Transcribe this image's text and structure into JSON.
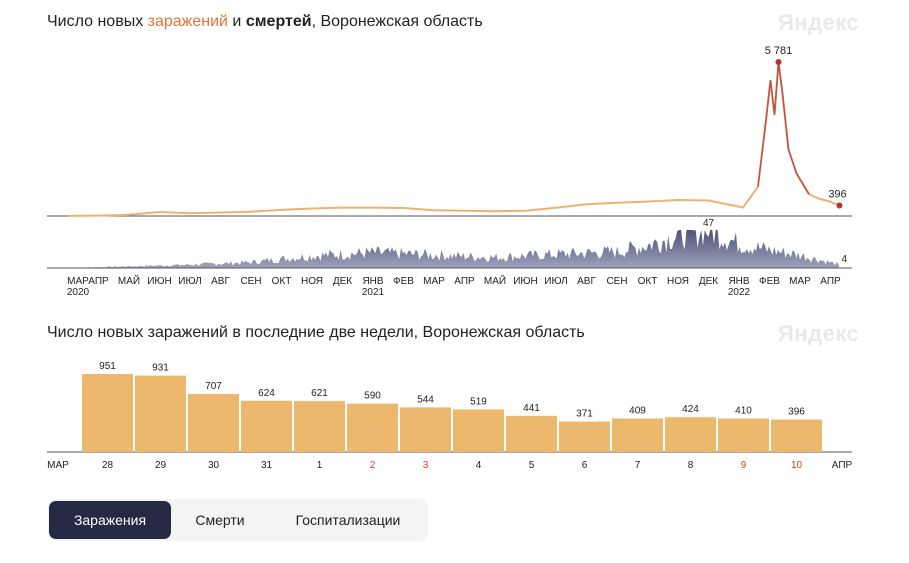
{
  "colors": {
    "infections_line": "#ebb36f",
    "infections_peak": "#b3323a",
    "deaths_area": "#4f5478",
    "bar": "#ecb86d",
    "weekend_label": "#d0401b",
    "active_tab": "#262a45",
    "brand": "#e9e9e9"
  },
  "brand": "Яндекс",
  "chart_top": {
    "title_part1": "Число новых ",
    "title_infections": "заражений",
    "title_part2": " и ",
    "title_deaths": "смертей",
    "title_part3": ", Воронежская область"
  },
  "chart_bottom": {
    "title": "Число новых заражений в последние две недели, Воронежская область"
  },
  "chart_data": [
    {
      "type": "line",
      "series": [
        {
          "name": "заражений",
          "x": [
            "2020-03",
            "2020-04",
            "2020-05",
            "2020-06",
            "2020-07",
            "2020-08",
            "2020-09",
            "2020-10",
            "2020-11",
            "2020-12",
            "2021-01",
            "2021-02",
            "2021-03",
            "2021-04",
            "2021-05",
            "2021-06",
            "2021-07",
            "2021-08",
            "2021-09",
            "2021-10",
            "2021-11",
            "2021-12",
            "2022-01-05",
            "2022-01-20",
            "2022-01-28",
            "2022-02-02",
            "2022-02-06",
            "2022-02-10",
            "2022-02-14",
            "2022-02-20",
            "2022-02-28",
            "2022-03-10",
            "2022-03-20",
            "2022-03-31",
            "2022-04-10"
          ],
          "values": [
            2,
            15,
            45,
            150,
            100,
            130,
            160,
            230,
            280,
            315,
            315,
            300,
            215,
            195,
            180,
            200,
            310,
            440,
            500,
            540,
            600,
            580,
            320,
            1100,
            3600,
            5100,
            3800,
            5781,
            4600,
            2500,
            1600,
            820,
            650,
            540,
            396
          ]
        },
        {
          "name": "смертей",
          "x": [
            "2020-03",
            "2020-05",
            "2020-07",
            "2020-09",
            "2020-11",
            "2021-01",
            "2021-03",
            "2021-05",
            "2021-07",
            "2021-09",
            "2021-10",
            "2021-11",
            "2021-12",
            "2022-01",
            "2022-02",
            "2022-03",
            "2022-04-10"
          ],
          "values": [
            0,
            2,
            4,
            7,
            15,
            19,
            16,
            13,
            17,
            20,
            28,
            40,
            47,
            30,
            22,
            16,
            4
          ]
        }
      ],
      "annotations": [
        {
          "label": "5 781",
          "series": "заражений",
          "x": "2022-02-10"
        },
        {
          "label": "396",
          "series": "заражений",
          "x": "2022-04-10"
        },
        {
          "label": "47",
          "series": "смертей",
          "x": "2021-12"
        },
        {
          "label": "4",
          "series": "смертей",
          "x": "2022-04-10"
        }
      ],
      "x_ticks": [
        {
          "label": "МАР",
          "year": "2020"
        },
        {
          "label": "АПР"
        },
        {
          "label": "МАЙ"
        },
        {
          "label": "ИЮН"
        },
        {
          "label": "ИЮЛ"
        },
        {
          "label": "АВГ"
        },
        {
          "label": "СЕН"
        },
        {
          "label": "ОКТ"
        },
        {
          "label": "НОЯ"
        },
        {
          "label": "ДЕК"
        },
        {
          "label": "ЯНВ",
          "year": "2021"
        },
        {
          "label": "ФЕВ"
        },
        {
          "label": "МАР"
        },
        {
          "label": "АПР"
        },
        {
          "label": "МАЙ"
        },
        {
          "label": "ИЮН"
        },
        {
          "label": "ИЮЛ"
        },
        {
          "label": "АВГ"
        },
        {
          "label": "СЕН"
        },
        {
          "label": "ОКТ"
        },
        {
          "label": "НОЯ"
        },
        {
          "label": "ДЕК"
        },
        {
          "label": "ЯНВ",
          "year": "2022"
        },
        {
          "label": "ФЕВ"
        },
        {
          "label": "МАР"
        },
        {
          "label": "АПР"
        }
      ]
    },
    {
      "type": "bar",
      "categories": [
        "28",
        "29",
        "30",
        "31",
        "1",
        "2",
        "3",
        "4",
        "5",
        "6",
        "7",
        "8",
        "9",
        "10"
      ],
      "values": [
        951,
        931,
        707,
        624,
        621,
        590,
        544,
        519,
        441,
        371,
        409,
        424,
        410,
        396
      ],
      "weekend": [
        false,
        false,
        false,
        false,
        false,
        true,
        true,
        false,
        false,
        false,
        false,
        false,
        true,
        true
      ],
      "month_start": "МАР",
      "month_end": "АПР"
    }
  ],
  "tabs": [
    {
      "label": "Заражения",
      "active": true
    },
    {
      "label": "Смерти",
      "active": false
    },
    {
      "label": "Госпитализации",
      "active": false
    }
  ]
}
